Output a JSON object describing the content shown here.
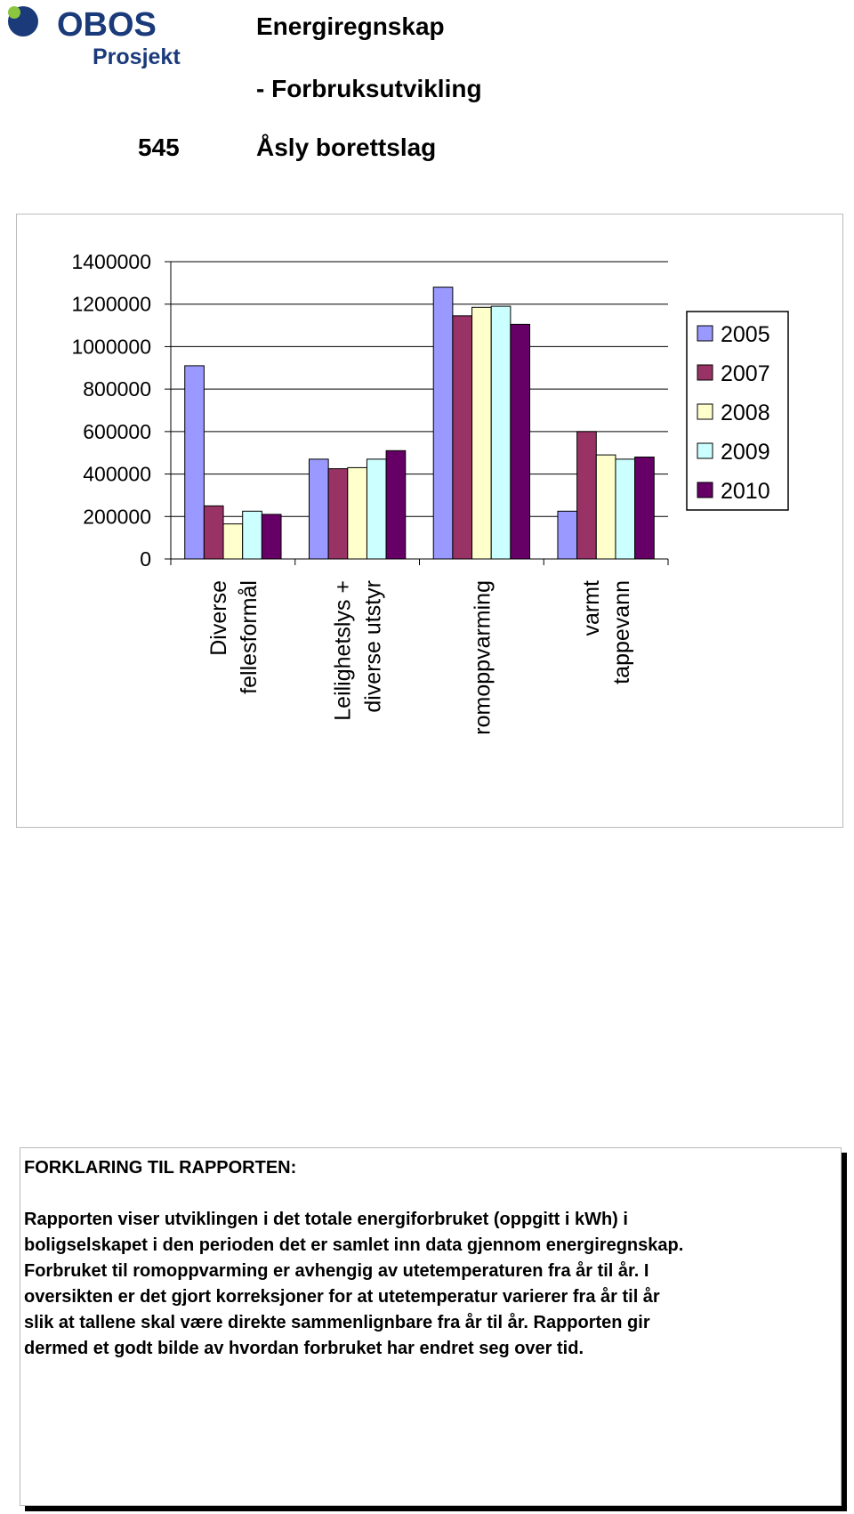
{
  "header": {
    "logo": "OBOS",
    "logo_sub": "Prosjekt",
    "title": "Energiregnskap",
    "subtitle": "- Forbruksutvikling",
    "number": "545",
    "name": "Åsly borettslag"
  },
  "chart_data": {
    "type": "bar",
    "categories": [
      "Diverse\nfellesformål",
      "Leilighetslys +\ndiverse utstyr",
      "romoppvarming",
      "varmt\ntappevann"
    ],
    "series": [
      {
        "name": "2005",
        "color": "#9999ff",
        "values": [
          910000,
          470000,
          1280000,
          225000
        ]
      },
      {
        "name": "2007",
        "color": "#993366",
        "values": [
          250000,
          425000,
          1145000,
          600000
        ]
      },
      {
        "name": "2008",
        "color": "#ffffcc",
        "values": [
          165000,
          430000,
          1185000,
          490000
        ]
      },
      {
        "name": "2009",
        "color": "#ccffff",
        "values": [
          225000,
          470000,
          1190000,
          470000
        ]
      },
      {
        "name": "2010",
        "color": "#660066",
        "values": [
          210000,
          510000,
          1105000,
          480000
        ]
      }
    ],
    "ylim": [
      0,
      1400000
    ],
    "yticks": [
      0,
      200000,
      400000,
      600000,
      800000,
      1000000,
      1200000,
      1400000
    ],
    "grid": true,
    "legend": "right"
  },
  "explanation": {
    "heading": "FORKLARING TIL RAPPORTEN:",
    "lines": [
      "Rapporten viser utviklingen i det totale energiforbruket (oppgitt i kWh) i",
      "boligselskapet i den perioden det er samlet inn data gjennom energiregnskap.",
      "Forbruket til romoppvarming er avhengig av utetemperaturen fra år til år. I",
      "oversikten er det gjort korreksjoner for at utetemperatur varierer fra år til år",
      "slik at tallene skal være direkte sammenlignbare fra år til år. Rapporten gir",
      "dermed et godt bilde av hvordan forbruket har endret seg over tid."
    ]
  }
}
